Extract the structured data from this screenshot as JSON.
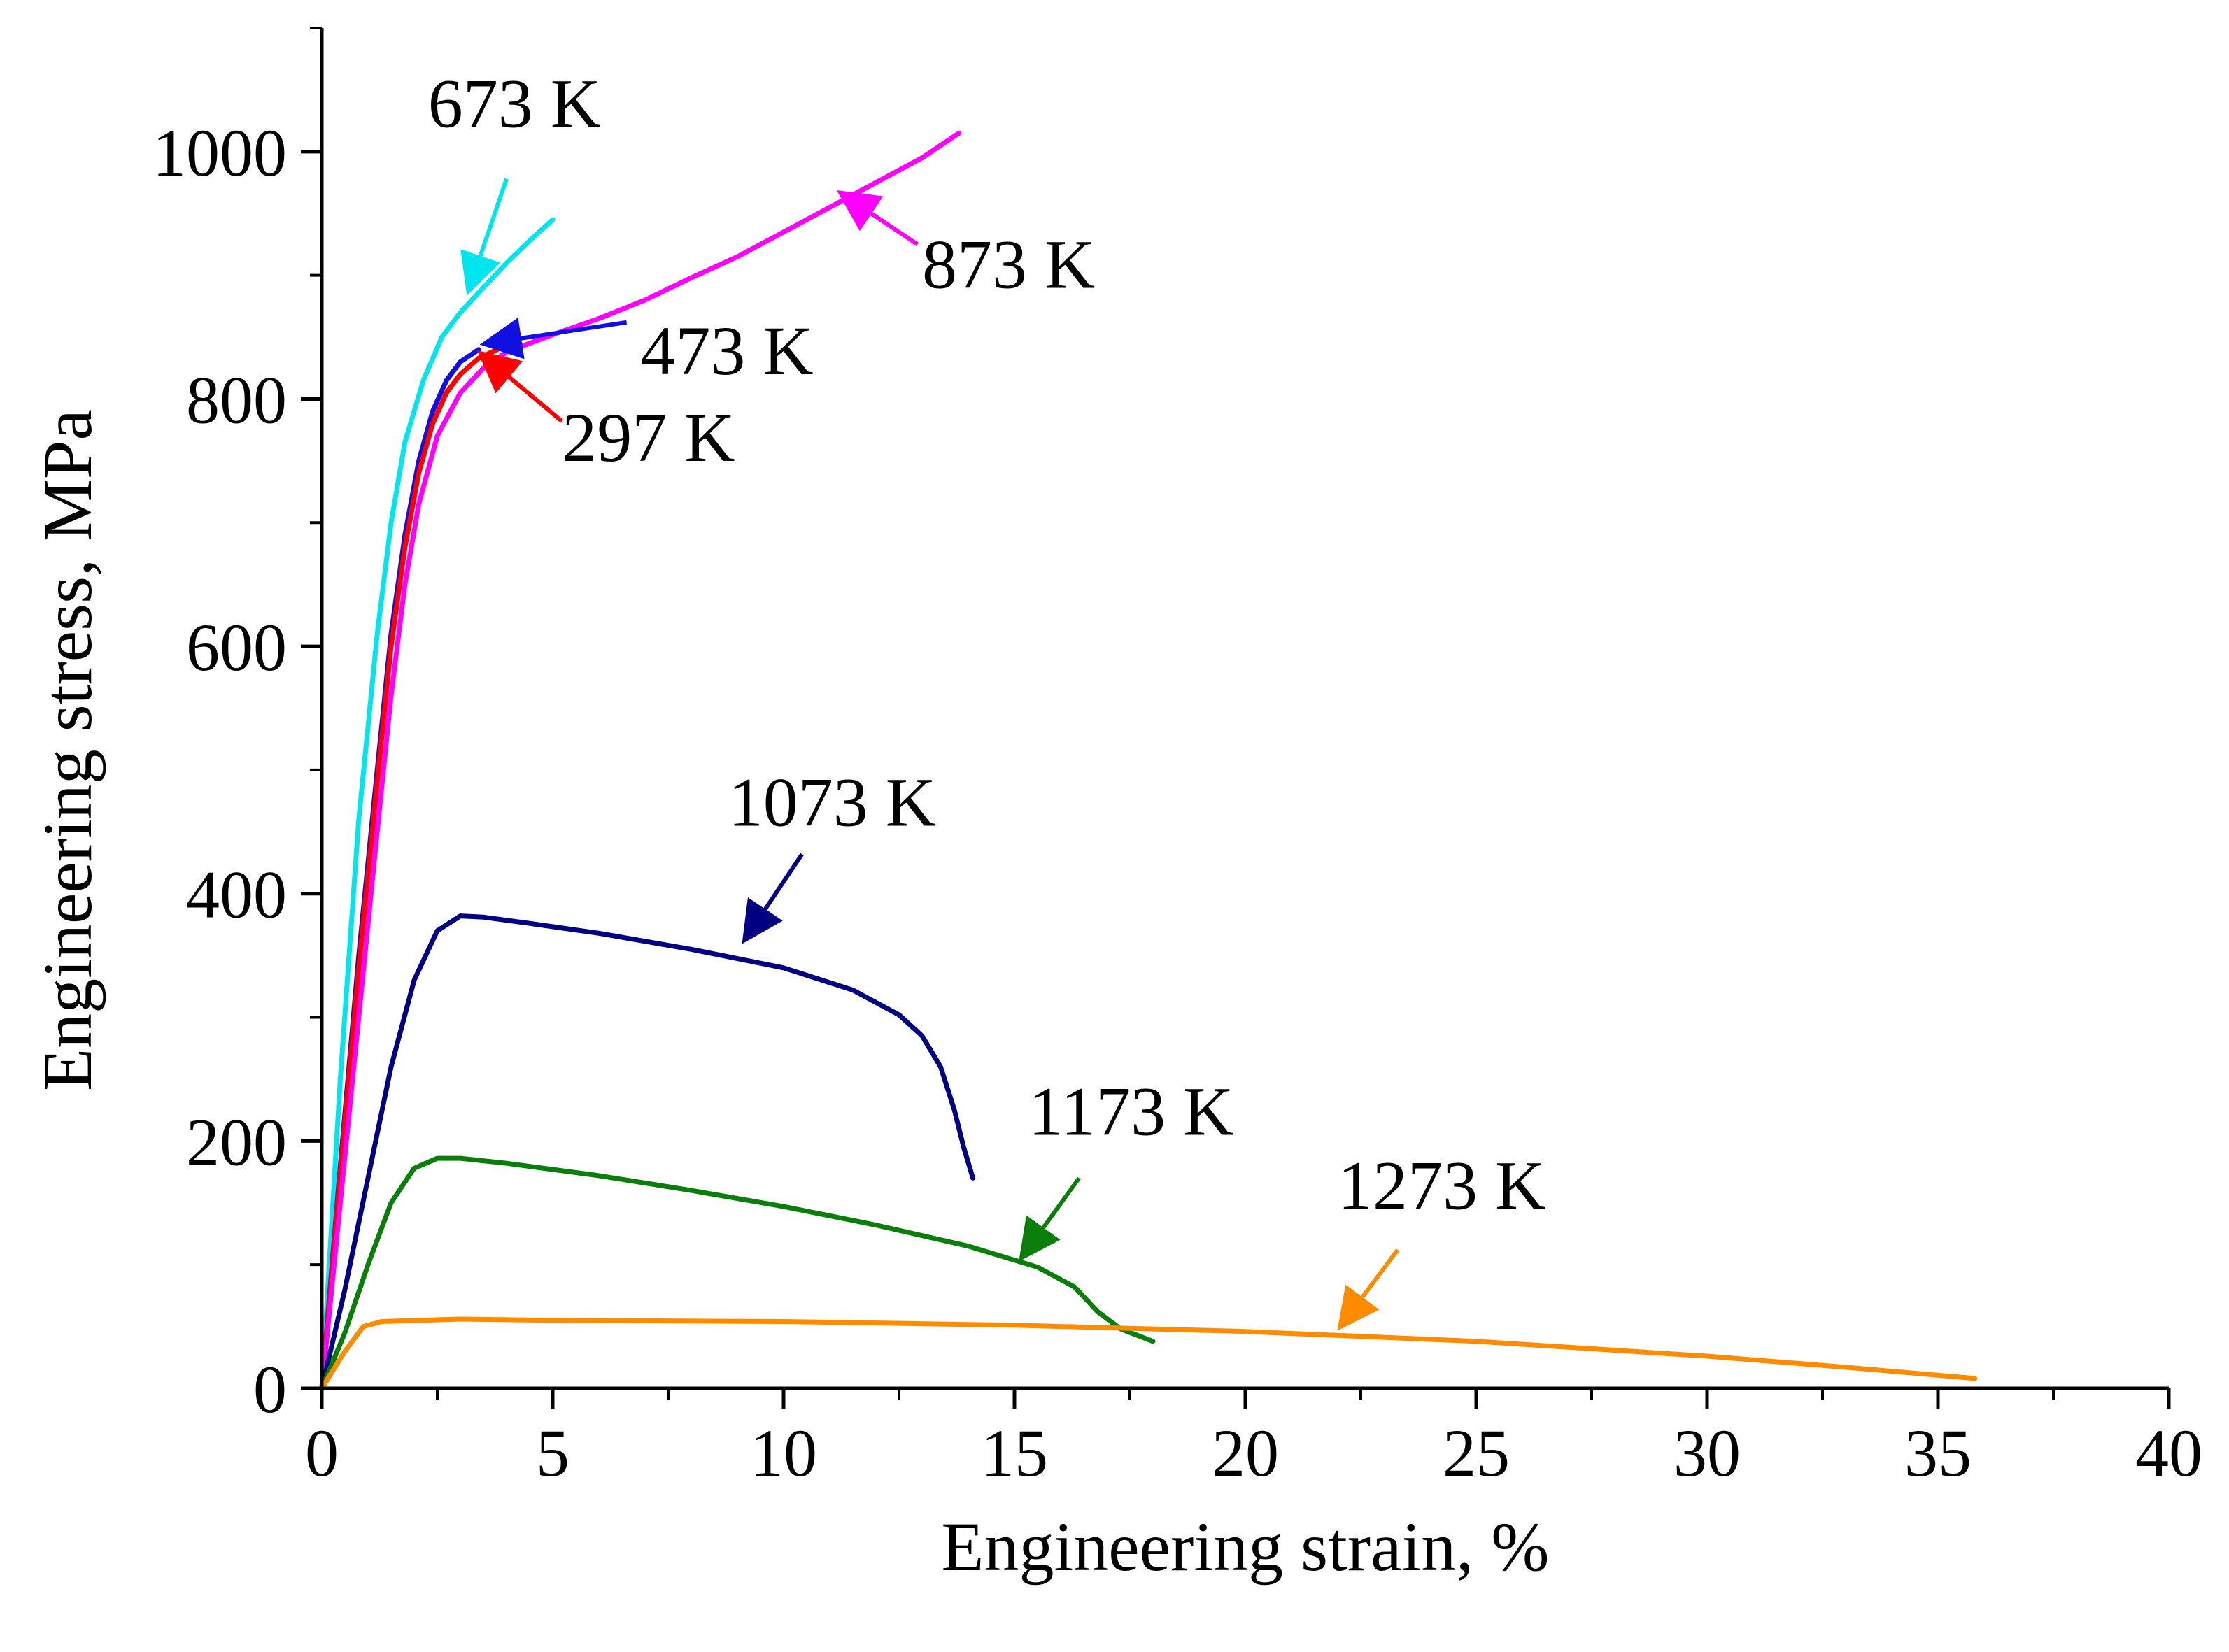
{
  "chart_data": {
    "type": "line",
    "title": "",
    "xlabel": "Engineering strain, %",
    "ylabel": "Engineering stress, MPa",
    "xlim": [
      0,
      40
    ],
    "ylim": [
      0,
      1100
    ],
    "xticks": [
      0,
      5,
      10,
      15,
      20,
      25,
      30,
      35,
      40
    ],
    "yticks": [
      0,
      200,
      400,
      600,
      800,
      1000
    ],
    "series": [
      {
        "name": "673 K",
        "color": "#00e5ee",
        "points": [
          [
            0,
            0
          ],
          [
            0.4,
            250
          ],
          [
            0.8,
            460
          ],
          [
            1.2,
            610
          ],
          [
            1.5,
            700
          ],
          [
            1.8,
            765
          ],
          [
            2.2,
            815
          ],
          [
            2.6,
            850
          ],
          [
            3.0,
            870
          ],
          [
            3.5,
            890
          ],
          [
            4.0,
            910
          ],
          [
            4.5,
            928
          ],
          [
            5.0,
            945
          ]
        ]
      },
      {
        "name": "473 K",
        "color": "#1010e0",
        "points": [
          [
            0,
            0
          ],
          [
            0.4,
            180
          ],
          [
            0.8,
            350
          ],
          [
            1.2,
            500
          ],
          [
            1.5,
            610
          ],
          [
            1.8,
            690
          ],
          [
            2.1,
            750
          ],
          [
            2.4,
            790
          ],
          [
            2.7,
            815
          ],
          [
            3.0,
            830
          ],
          [
            3.4,
            840
          ]
        ]
      },
      {
        "name": "297 K",
        "color": "#ff0000",
        "points": [
          [
            0,
            0
          ],
          [
            0.4,
            175
          ],
          [
            0.8,
            340
          ],
          [
            1.2,
            490
          ],
          [
            1.5,
            600
          ],
          [
            1.8,
            680
          ],
          [
            2.1,
            740
          ],
          [
            2.4,
            780
          ],
          [
            2.7,
            805
          ],
          [
            3.0,
            820
          ],
          [
            3.4,
            833
          ],
          [
            3.8,
            840
          ]
        ]
      },
      {
        "name": "873 K",
        "color": "#ff00ff",
        "points": [
          [
            0,
            0
          ],
          [
            0.4,
            150
          ],
          [
            0.8,
            300
          ],
          [
            1.2,
            450
          ],
          [
            1.5,
            560
          ],
          [
            1.8,
            650
          ],
          [
            2.1,
            715
          ],
          [
            2.5,
            770
          ],
          [
            3.0,
            805
          ],
          [
            3.5,
            825
          ],
          [
            4.0,
            838
          ],
          [
            5.0,
            852
          ],
          [
            6.0,
            865
          ],
          [
            7.0,
            880
          ],
          [
            8.0,
            898
          ],
          [
            9.0,
            915
          ],
          [
            10.0,
            935
          ],
          [
            11.0,
            955
          ],
          [
            12.0,
            975
          ],
          [
            13.0,
            995
          ],
          [
            13.8,
            1015
          ]
        ]
      },
      {
        "name": "1073 K",
        "color": "#000080",
        "points": [
          [
            0,
            0
          ],
          [
            0.5,
            80
          ],
          [
            1.0,
            170
          ],
          [
            1.5,
            260
          ],
          [
            2.0,
            330
          ],
          [
            2.5,
            370
          ],
          [
            3.0,
            382
          ],
          [
            3.5,
            381
          ],
          [
            4.5,
            376
          ],
          [
            6.0,
            368
          ],
          [
            8.0,
            355
          ],
          [
            10.0,
            340
          ],
          [
            11.5,
            322
          ],
          [
            12.5,
            302
          ],
          [
            13.0,
            285
          ],
          [
            13.4,
            260
          ],
          [
            13.7,
            225
          ],
          [
            13.9,
            195
          ],
          [
            14.1,
            170
          ]
        ]
      },
      {
        "name": "1173 K",
        "color": "#0a7d0a",
        "points": [
          [
            0,
            0
          ],
          [
            0.5,
            45
          ],
          [
            1.0,
            100
          ],
          [
            1.5,
            150
          ],
          [
            2.0,
            178
          ],
          [
            2.5,
            186
          ],
          [
            3.0,
            186
          ],
          [
            4.0,
            182
          ],
          [
            6.0,
            172
          ],
          [
            8.0,
            160
          ],
          [
            10.0,
            147
          ],
          [
            12.0,
            132
          ],
          [
            14.0,
            115
          ],
          [
            15.5,
            98
          ],
          [
            16.3,
            82
          ],
          [
            16.8,
            62
          ],
          [
            17.3,
            48
          ],
          [
            18.0,
            38
          ]
        ]
      },
      {
        "name": "1273 K",
        "color": "#ff8c00",
        "points": [
          [
            0,
            0
          ],
          [
            0.5,
            30
          ],
          [
            0.9,
            50
          ],
          [
            1.3,
            54
          ],
          [
            3.0,
            56
          ],
          [
            5.0,
            55
          ],
          [
            10.0,
            54
          ],
          [
            15.0,
            51
          ],
          [
            20.0,
            46
          ],
          [
            25.0,
            38
          ],
          [
            30.0,
            26
          ],
          [
            33.0,
            17
          ],
          [
            35.8,
            8
          ]
        ]
      }
    ],
    "annotations": [
      {
        "text": "673 K",
        "color": "#00e5ee",
        "label_at": [
          2.3,
          1020
        ],
        "arrow_from": [
          4.0,
          978
        ],
        "arrow_to": [
          3.2,
          890
        ]
      },
      {
        "text": "473 K",
        "color": "#1010e0",
        "label_at": [
          6.9,
          820
        ],
        "arrow_from": [
          6.6,
          862
        ],
        "arrow_to": [
          3.6,
          845
        ]
      },
      {
        "text": "297 K",
        "color": "#ff0000",
        "label_at": [
          5.2,
          750
        ],
        "arrow_from": [
          5.2,
          782
        ],
        "arrow_to": [
          3.5,
          835
        ]
      },
      {
        "text": "873 K",
        "color": "#ff00ff",
        "label_at": [
          13.0,
          890
        ],
        "arrow_from": [
          12.9,
          925
        ],
        "arrow_to": [
          11.3,
          965
        ]
      },
      {
        "text": "1073 K",
        "color": "#000080",
        "label_at": [
          8.8,
          455
        ],
        "arrow_from": [
          10.4,
          432
        ],
        "arrow_to": [
          9.2,
          365
        ]
      },
      {
        "text": "1173 K",
        "color": "#0a7d0a",
        "label_at": [
          15.3,
          205
        ],
        "arrow_from": [
          16.4,
          170
        ],
        "arrow_to": [
          15.2,
          108
        ]
      },
      {
        "text": "1273 K",
        "color": "#ff8c00",
        "label_at": [
          22.0,
          145
        ],
        "arrow_from": [
          23.3,
          112
        ],
        "arrow_to": [
          22.1,
          52
        ]
      }
    ]
  }
}
